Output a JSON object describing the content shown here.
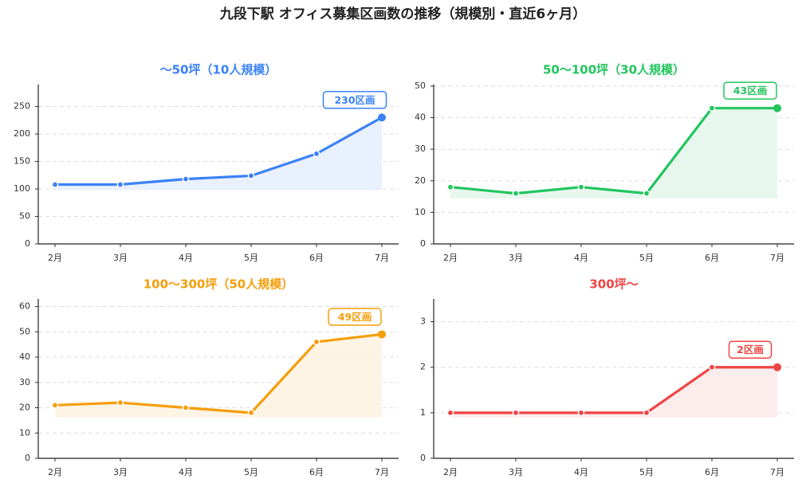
{
  "title": "九段下駅 オフィス募集区画数の推移（規模別・直近6ヶ月）",
  "chart_data": [
    {
      "type": "line",
      "title": "〜50坪（10人規模）",
      "color": "#3b82f6",
      "fill": "#e8f0fe",
      "categories": [
        "2月",
        "3月",
        "4月",
        "5月",
        "6月",
        "7月"
      ],
      "values": [
        108,
        108,
        118,
        124,
        164,
        230
      ],
      "ylim": [
        0,
        290
      ],
      "yticks": [
        0,
        50,
        100,
        150,
        200,
        250
      ],
      "baseline": 98,
      "annotation": "230区画",
      "grid": true
    },
    {
      "type": "line",
      "title": "50〜100坪（30人規模）",
      "color": "#22c55e",
      "fill": "#e6f6ec",
      "categories": [
        "2月",
        "3月",
        "4月",
        "5月",
        "6月",
        "7月"
      ],
      "values": [
        18,
        16,
        18,
        16,
        43,
        43
      ],
      "ylim": [
        0,
        50.5
      ],
      "yticks": [
        0,
        10,
        20,
        30,
        40,
        50
      ],
      "baseline": 14.4,
      "annotation": "43区画",
      "grid": true
    },
    {
      "type": "line",
      "title": "100〜300坪（50人規模）",
      "color": "#f59e0b",
      "fill": "#fef3e2",
      "categories": [
        "2月",
        "3月",
        "4月",
        "5月",
        "6月",
        "7月"
      ],
      "values": [
        21,
        22,
        20,
        18,
        46,
        49
      ],
      "ylim": [
        0,
        63
      ],
      "yticks": [
        0,
        10,
        20,
        30,
        40,
        50,
        60
      ],
      "baseline": 16.2,
      "annotation": "49区画",
      "grid": true
    },
    {
      "type": "line",
      "title": "300坪〜",
      "color": "#ef4444",
      "fill": "#fdeaea",
      "categories": [
        "2月",
        "3月",
        "4月",
        "5月",
        "6月",
        "7月"
      ],
      "values": [
        1,
        1,
        1,
        1,
        2,
        2
      ],
      "ylim": [
        0,
        3.5
      ],
      "yticks": [
        0,
        1,
        2,
        3
      ],
      "baseline": 0.9,
      "annotation": "2区画",
      "grid": true
    }
  ]
}
